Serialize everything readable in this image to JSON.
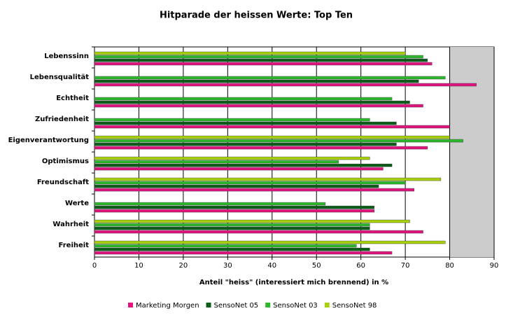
{
  "chart_data": {
    "type": "hbar",
    "title": "Hitparade der heissen Werte: Top Ten",
    "xlabel": "Anteil \"heiss\" (interessiert mich brennend) in %",
    "categories": [
      "Lebenssinn",
      "Lebensqualität",
      "Echtheit",
      "Zufriedenheit",
      "Eigenverantwortung",
      "Optimismus",
      "Freundschaft",
      "Werte",
      "Wahrheit",
      "Freiheit"
    ],
    "series": [
      {
        "name": "Marketing Morgen",
        "color": "#e0157f",
        "values": [
          76,
          86,
          74,
          80,
          75,
          65,
          72,
          63,
          74,
          67
        ]
      },
      {
        "name": "SensoNet 05",
        "color": "#0b5d18",
        "values": [
          75,
          73,
          71,
          68,
          68,
          67,
          64,
          63,
          62,
          62
        ]
      },
      {
        "name": "SensoNet 03",
        "color": "#2db82d",
        "values": [
          74,
          79,
          67,
          62,
          83,
          55,
          70,
          52,
          62,
          59
        ]
      },
      {
        "name": "SensoNet 98",
        "color": "#a8d10c",
        "values": [
          70,
          null,
          null,
          null,
          80,
          62,
          78,
          null,
          71,
          79
        ]
      }
    ],
    "xlim": [
      0,
      90
    ],
    "xticks": [
      0,
      10,
      20,
      30,
      40,
      50,
      60,
      70,
      80,
      90
    ],
    "grid": true
  }
}
